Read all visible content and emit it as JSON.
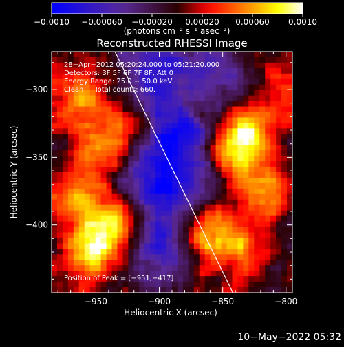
{
  "chart_data": {
    "type": "heatmap",
    "title": "Reconstructed RHESSI Image",
    "xlabel": "Heliocentric X (arcsec)",
    "ylabel": "Heliocentric Y (arcsec)",
    "xlim": [
      -985,
      -795
    ],
    "ylim": [
      -450,
      -272
    ],
    "xticks": [
      -950,
      -900,
      -850,
      -800
    ],
    "xtick_labels": [
      "−950",
      "−900",
      "−850",
      "−800"
    ],
    "yticks": [
      -300,
      -350,
      -400
    ],
    "ytick_labels": [
      "−300",
      "−350",
      "−400"
    ],
    "colorbar": {
      "range": [
        -0.001,
        0.001
      ],
      "ticks": [
        -0.001,
        -0.0006,
        -0.0002,
        0.0002,
        0.0006,
        0.001
      ],
      "tick_labels": [
        "−0.0010",
        "−0.00060",
        "−0.00020",
        "0.00020",
        "0.00060",
        "0.0010"
      ],
      "units_label": "(photons cm⁻² s⁻¹ asec⁻²)"
    },
    "annotations": {
      "time_range": "28−Apr−2012 05:20:24.000 to 05:21:20.000",
      "detectors": "Detectors: 3F 5F 6F 7F 8F, Att 0",
      "energy_range": "Energy Range: 25.0 − 50.0 keV",
      "clean_counts": "Clean     Total counts: 660.",
      "peak": "Position of Peak = [−951,−417]"
    },
    "limb_line": {
      "x": [
        -935,
        -842
      ],
      "y": [
        -272,
        -450
      ]
    },
    "peak_position": [
      -951,
      -417
    ],
    "hot_regions": [
      {
        "x": -951,
        "y": -417,
        "level": 1.0
      },
      {
        "x": -932,
        "y": -397,
        "level": 0.75
      },
      {
        "x": -842,
        "y": -345,
        "level": 0.85
      },
      {
        "x": -828,
        "y": -330,
        "level": 0.8
      },
      {
        "x": -818,
        "y": -375,
        "level": 0.8
      },
      {
        "x": -862,
        "y": -405,
        "level": 0.85
      },
      {
        "x": -945,
        "y": -345,
        "level": 0.7
      },
      {
        "x": -960,
        "y": -305,
        "level": 0.55
      },
      {
        "x": -925,
        "y": -330,
        "level": 0.6
      },
      {
        "x": -870,
        "y": -310,
        "level": 0.55
      },
      {
        "x": -835,
        "y": -420,
        "level": 0.6
      },
      {
        "x": -965,
        "y": -380,
        "level": 0.6
      },
      {
        "x": -800,
        "y": -300,
        "level": 0.45
      }
    ],
    "cold_regions": [
      {
        "x": -895,
        "y": -375,
        "level": 0.9
      },
      {
        "x": -880,
        "y": -330,
        "level": 0.8
      },
      {
        "x": -900,
        "y": -420,
        "level": 0.7
      },
      {
        "x": -865,
        "y": -290,
        "level": 0.6
      },
      {
        "x": -905,
        "y": -290,
        "level": 0.6
      },
      {
        "x": -915,
        "y": -350,
        "level": 0.5
      }
    ]
  },
  "footer": {
    "timestamp": "10−May−2022 05:32"
  },
  "colors": {
    "background": "#000000",
    "foreground": "#ffffff",
    "colormap": [
      "#0000ff",
      "#5a2a9a",
      "#2a0000",
      "#ff0000",
      "#ff8c00",
      "#ffff00",
      "#ffffff"
    ]
  }
}
